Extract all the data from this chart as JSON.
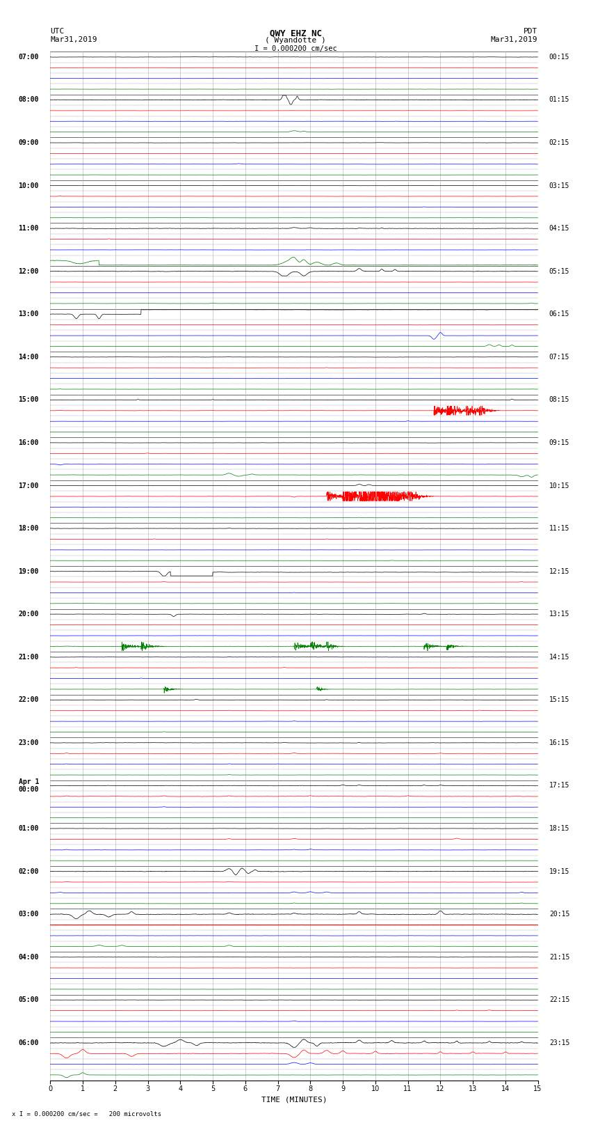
{
  "title_line1": "QWY EHZ NC",
  "title_line2": "( Wyandotte )",
  "scale_text": "I = 0.000200 cm/sec",
  "left_date_line1": "UTC",
  "left_date_line2": "Mar31,2019",
  "right_date_line1": "PDT",
  "right_date_line2": "Mar31,2019",
  "bottom_note": "x I = 0.000200 cm/sec =   200 microvolts",
  "xlabel": "TIME (MINUTES)",
  "bg_color": "#ffffff",
  "fig_width": 8.5,
  "fig_height": 16.13,
  "left_labels": [
    "07:00",
    "08:00",
    "09:00",
    "10:00",
    "11:00",
    "12:00",
    "13:00",
    "14:00",
    "15:00",
    "16:00",
    "17:00",
    "18:00",
    "19:00",
    "20:00",
    "21:00",
    "22:00",
    "23:00",
    "Apr 1\n00:00",
    "01:00",
    "02:00",
    "03:00",
    "04:00",
    "05:00",
    "06:00"
  ],
  "right_labels": [
    "00:15",
    "01:15",
    "02:15",
    "03:15",
    "04:15",
    "05:15",
    "06:15",
    "07:15",
    "08:15",
    "09:15",
    "10:15",
    "11:15",
    "12:15",
    "13:15",
    "14:15",
    "15:15",
    "16:15",
    "17:15",
    "18:15",
    "19:15",
    "20:15",
    "21:15",
    "22:15",
    "23:15"
  ]
}
